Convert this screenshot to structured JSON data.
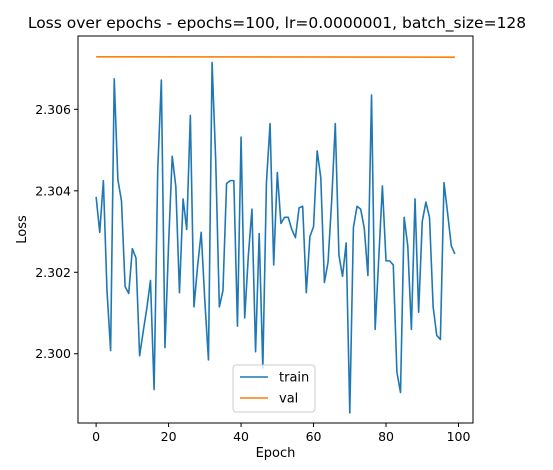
{
  "chart_data": {
    "type": "line",
    "title": "Loss over epochs - epochs=100, lr=0.0000001, batch_size=128",
    "xlabel": "Epoch",
    "ylabel": "Loss",
    "xlim": [
      -5,
      104
    ],
    "ylim": [
      2.2983,
      2.3078
    ],
    "xticks": [
      0,
      20,
      40,
      60,
      80,
      100
    ],
    "xtick_labels": [
      "0",
      "20",
      "40",
      "60",
      "80",
      "100"
    ],
    "yticks": [
      2.3,
      2.302,
      2.304,
      2.306
    ],
    "ytick_labels": [
      "2.300",
      "2.302",
      "2.304",
      "2.306"
    ],
    "grid": false,
    "legend_position": "lower center",
    "series": [
      {
        "name": "train",
        "color": "#1f77b4",
        "x": [
          0,
          1,
          2,
          3,
          4,
          5,
          6,
          7,
          8,
          9,
          10,
          11,
          12,
          13,
          14,
          15,
          16,
          17,
          18,
          19,
          20,
          21,
          22,
          23,
          24,
          25,
          26,
          27,
          28,
          29,
          30,
          31,
          32,
          33,
          34,
          35,
          36,
          37,
          38,
          39,
          40,
          41,
          42,
          43,
          44,
          45,
          46,
          47,
          48,
          49,
          50,
          51,
          52,
          53,
          54,
          55,
          56,
          57,
          58,
          59,
          60,
          61,
          62,
          63,
          64,
          65,
          66,
          67,
          68,
          69,
          70,
          71,
          72,
          73,
          74,
          75,
          76,
          77,
          78,
          79,
          80,
          81,
          82,
          83,
          84,
          85,
          86,
          87,
          88,
          89,
          90,
          91,
          92,
          93,
          94,
          95,
          96,
          97,
          98,
          99
        ],
        "values": [
          2.30385,
          2.30298,
          2.30425,
          2.30155,
          2.30008,
          2.30675,
          2.30428,
          2.30375,
          2.30165,
          2.30148,
          2.30258,
          2.30235,
          2.29995,
          2.30055,
          2.30112,
          2.3018,
          2.29912,
          2.3045,
          2.30672,
          2.30015,
          2.3027,
          2.30485,
          2.3041,
          2.3015,
          2.3038,
          2.30305,
          2.30585,
          2.30115,
          2.30215,
          2.30298,
          2.3013,
          2.29985,
          2.30715,
          2.30475,
          2.30115,
          2.30155,
          2.30418,
          2.30425,
          2.30425,
          2.30068,
          2.30532,
          2.30088,
          2.3024,
          2.30355,
          2.30005,
          2.30295,
          2.29965,
          2.3042,
          2.30565,
          2.30218,
          2.30445,
          2.3032,
          2.30335,
          2.30335,
          2.30305,
          2.30285,
          2.30358,
          2.30362,
          2.3015,
          2.30288,
          2.30312,
          2.30498,
          2.30432,
          2.30175,
          2.30225,
          2.30375,
          2.30565,
          2.30242,
          2.3019,
          2.30272,
          2.29855,
          2.3031,
          2.30362,
          2.30355,
          2.30308,
          2.30192,
          2.30635,
          2.3006,
          2.30235,
          2.30412,
          2.30228,
          2.30228,
          2.30218,
          2.29955,
          2.29905,
          2.30335,
          2.30265,
          2.3006,
          2.3038,
          2.30102,
          2.30325,
          2.30372,
          2.30335,
          2.30115,
          2.30045,
          2.30035,
          2.3042,
          2.30345,
          2.30265,
          2.30245
        ]
      },
      {
        "name": "val",
        "color": "#ff7f0e",
        "x": [
          0,
          99
        ],
        "values": [
          2.30729,
          2.30728
        ]
      }
    ]
  }
}
